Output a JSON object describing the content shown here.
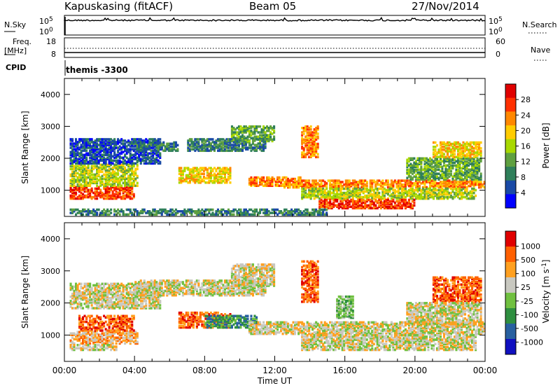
{
  "header": {
    "station": "Kapuskasing (fitACF)",
    "beam": "Beam 05",
    "date": "27/Nov/2014"
  },
  "params": {
    "nsky_label": "N.Sky",
    "nsearch_label": "N.Search",
    "freq_label": "Freq.",
    "freq_unit": "[MHz]",
    "nave_label": "Nave",
    "cpid_label": "CPID",
    "cpid_value": "themis -3300",
    "nsky_ticks": [
      "10^5",
      "10^0"
    ],
    "nsearch_ticks": [
      "10^5",
      "10^0"
    ],
    "freq_ticks": [
      "18",
      "8"
    ],
    "nave_ticks": [
      "60",
      "0"
    ]
  },
  "colors": {
    "power": [
      "#0000ff",
      "#1a4aa6",
      "#2f7f5a",
      "#5fa040",
      "#a8d800",
      "#ffcc00",
      "#ff8800",
      "#ff3000",
      "#e00000"
    ],
    "velocity": [
      "#1010c0",
      "#2860a0",
      "#2f8f40",
      "#70c040",
      "#c8c8c0",
      "#ffa020",
      "#ff6000",
      "#e00000"
    ],
    "ground_scatter": "#c8c8c0"
  },
  "chart_data": [
    {
      "type": "line",
      "panel": "N.Sky / N.Search",
      "ylabel": "N.Sky",
      "ylabel_right": "N.Search",
      "yscale": "log",
      "y_ticks": [
        "10^5",
        "10^0"
      ],
      "x": [
        "00:00",
        "04:00",
        "08:00",
        "12:00",
        "16:00",
        "20:00",
        "00:00"
      ],
      "series": [
        {
          "name": "N.Sky",
          "values": [
            100000,
            100000,
            100000,
            100000,
            100000,
            100000,
            100000
          ]
        }
      ]
    },
    {
      "type": "line",
      "panel": "Freq. / Nave",
      "ylabel": "Freq. [MHz]",
      "ylabel_right": "Nave",
      "ylim": [
        8,
        18
      ],
      "ylim_right": [
        0,
        60
      ],
      "x": [
        "00:00",
        "04:00",
        "08:00",
        "12:00",
        "16:00",
        "20:00",
        "00:00"
      ],
      "series": [
        {
          "name": "Freq.",
          "values": [
            10.5,
            10.5,
            10.5,
            10.5,
            10.5,
            10.5,
            10.5
          ]
        },
        {
          "name": "Nave",
          "values": [
            27,
            27,
            27,
            27,
            27,
            27,
            27
          ]
        }
      ]
    },
    {
      "type": "heatmap",
      "panel": "Power",
      "xlabel": "Time UT",
      "ylabel": "Slant Range [km]",
      "colorbar_label": "Power [dB]",
      "colorbar_ticks": [
        "4",
        "8",
        "12",
        "16",
        "20",
        "24",
        "28"
      ],
      "x_ticks": [
        "00:00",
        "04:00",
        "08:00",
        "12:00",
        "16:00",
        "20:00",
        "00:00"
      ],
      "y_ticks": [
        "1000",
        "2000",
        "3000",
        "4000"
      ],
      "xlim_hours": [
        0,
        24
      ],
      "ylim": [
        180,
        4500
      ],
      "bands": [
        {
          "t0": 0.3,
          "t1": 4.0,
          "r0": 700,
          "r1": 1100,
          "level": 7
        },
        {
          "t0": 0.3,
          "t1": 4.2,
          "r0": 1100,
          "r1": 1800,
          "level": 4
        },
        {
          "t0": 0.3,
          "t1": 5.5,
          "r0": 1800,
          "r1": 2600,
          "level": 1
        },
        {
          "t0": 4.0,
          "t1": 6.5,
          "r0": 2200,
          "r1": 2500,
          "level": 2
        },
        {
          "t0": 6.5,
          "t1": 9.5,
          "r0": 1200,
          "r1": 1700,
          "level": 5
        },
        {
          "t0": 7.0,
          "t1": 11.5,
          "r0": 2200,
          "r1": 2600,
          "level": 2
        },
        {
          "t0": 9.5,
          "t1": 12.0,
          "r0": 2500,
          "r1": 3000,
          "level": 3
        },
        {
          "t0": 10.5,
          "t1": 13.5,
          "r0": 1100,
          "r1": 1400,
          "level": 6
        },
        {
          "t0": 12.5,
          "t1": 24.0,
          "r0": 1050,
          "r1": 1300,
          "level": 6
        },
        {
          "t0": 13.5,
          "t1": 23.5,
          "r0": 700,
          "r1": 1050,
          "level": 4
        },
        {
          "t0": 14.5,
          "t1": 20.0,
          "r0": 400,
          "r1": 700,
          "level": 7
        },
        {
          "t0": 13.5,
          "t1": 14.5,
          "r0": 2000,
          "r1": 3000,
          "level": 6
        },
        {
          "t0": 19.5,
          "t1": 23.8,
          "r0": 1300,
          "r1": 2000,
          "level": 3
        },
        {
          "t0": 21.0,
          "t1": 23.8,
          "r0": 2000,
          "r1": 2500,
          "level": 5
        },
        {
          "t0": 0.3,
          "t1": 15.0,
          "r0": 200,
          "r1": 400,
          "level": 2
        }
      ]
    },
    {
      "type": "heatmap",
      "panel": "Velocity",
      "xlabel": "Time UT",
      "ylabel": "Slant Range [km]",
      "colorbar_label": "Velocity [m s^-1]",
      "colorbar_ticks": [
        "1000",
        "500",
        "100",
        "25",
        "-25",
        "-100",
        "-500",
        "-1000"
      ],
      "x_ticks": [
        "00:00",
        "04:00",
        "08:00",
        "12:00",
        "16:00",
        "20:00",
        "00:00"
      ],
      "y_ticks": [
        "1000",
        "2000",
        "3000",
        "4000"
      ],
      "xlim_hours": [
        0,
        24
      ],
      "ylim": [
        180,
        4500
      ],
      "bands": [
        {
          "t0": 0.3,
          "t1": 5.5,
          "r0": 1800,
          "r1": 2600,
          "level": 4
        },
        {
          "t0": 4.0,
          "t1": 11.5,
          "r0": 2200,
          "r1": 2700,
          "level": 4
        },
        {
          "t0": 9.5,
          "t1": 12.0,
          "r0": 2500,
          "r1": 3200,
          "level": 4
        },
        {
          "t0": 0.3,
          "t1": 4.2,
          "r0": 700,
          "r1": 1100,
          "level": 5
        },
        {
          "t0": 0.8,
          "t1": 4.0,
          "r0": 1100,
          "r1": 1600,
          "level": 6
        },
        {
          "t0": 6.5,
          "t1": 9.5,
          "r0": 1200,
          "r1": 1700,
          "level": 6
        },
        {
          "t0": 8.0,
          "t1": 11.0,
          "r0": 1200,
          "r1": 1600,
          "level": 2
        },
        {
          "t0": 10.5,
          "t1": 24.0,
          "r0": 1000,
          "r1": 1400,
          "level": 4
        },
        {
          "t0": 13.5,
          "t1": 23.5,
          "r0": 500,
          "r1": 1000,
          "level": 4
        },
        {
          "t0": 0.3,
          "t1": 3.0,
          "r0": 500,
          "r1": 700,
          "level": 4
        },
        {
          "t0": 13.5,
          "t1": 14.5,
          "r0": 2000,
          "r1": 3300,
          "level": 6
        },
        {
          "t0": 15.5,
          "t1": 16.5,
          "r0": 1500,
          "r1": 2200,
          "level": 3
        },
        {
          "t0": 21.0,
          "t1": 23.8,
          "r0": 2000,
          "r1": 2800,
          "level": 6
        },
        {
          "t0": 19.5,
          "t1": 23.8,
          "r0": 1300,
          "r1": 2000,
          "level": 4
        }
      ]
    }
  ]
}
